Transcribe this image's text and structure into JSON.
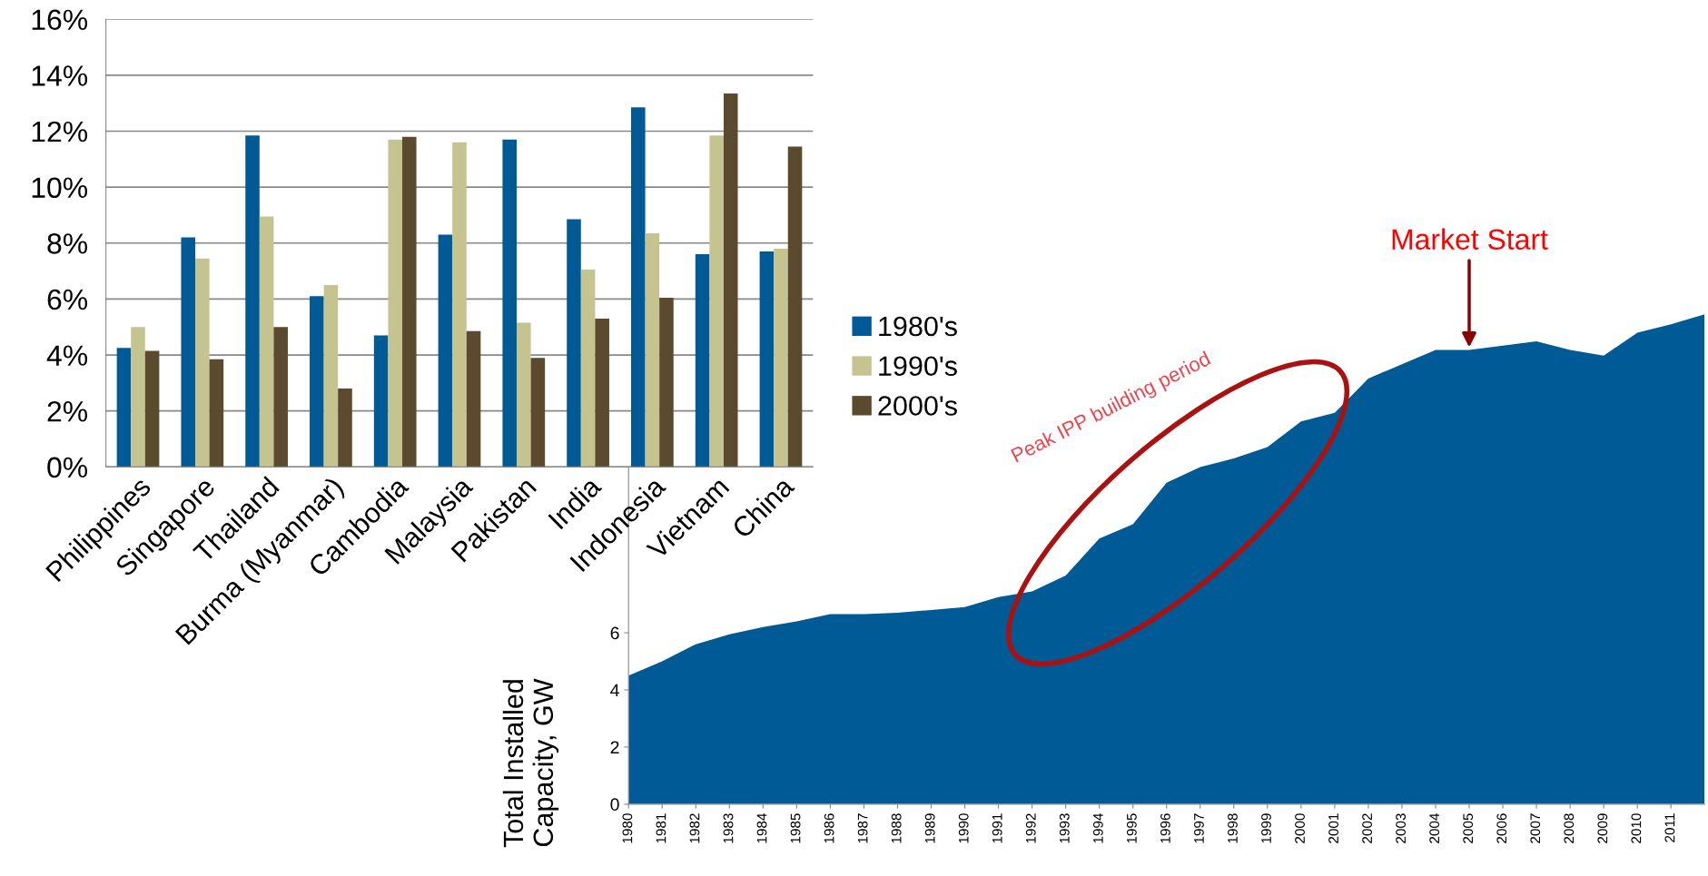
{
  "chart_data": [
    {
      "type": "bar",
      "categories": [
        "Philippines",
        "Singapore",
        "Thailand",
        "Burma (Myanmar)",
        "Cambodia",
        "Malaysia",
        "Pakistan",
        "India",
        "Indonesia",
        "Vietnam",
        "China"
      ],
      "series": [
        {
          "name": "1980's",
          "color": "#005a96",
          "values": [
            4.25,
            8.2,
            11.85,
            6.1,
            4.7,
            8.3,
            11.7,
            8.85,
            12.85,
            7.6,
            7.7
          ]
        },
        {
          "name": "1990's",
          "color": "#c5c491",
          "values": [
            5.0,
            7.45,
            8.95,
            6.5,
            11.7,
            11.6,
            5.15,
            7.05,
            8.35,
            11.85,
            7.8
          ]
        },
        {
          "name": "2000's",
          "color": "#5a4a2e",
          "values": [
            4.15,
            3.85,
            5.0,
            2.8,
            11.8,
            4.85,
            3.9,
            5.3,
            6.05,
            13.35,
            11.45
          ]
        }
      ],
      "ylim": [
        0,
        16
      ],
      "yticks": [
        {
          "value": 0,
          "label": "0%"
        },
        {
          "value": 2,
          "label": "2%"
        },
        {
          "value": 4,
          "label": "4%"
        },
        {
          "value": 6,
          "label": "6%"
        },
        {
          "value": 8,
          "label": "8%"
        },
        {
          "value": 10,
          "label": "10%"
        },
        {
          "value": 12,
          "label": "12%"
        },
        {
          "value": 14,
          "label": "14%"
        },
        {
          "value": 16,
          "label": "16%"
        }
      ],
      "grid": "y",
      "legend": "right"
    },
    {
      "type": "area",
      "ylabel": "Total Installed\nCapacity, GW",
      "x": [
        1980,
        1981,
        1982,
        1983,
        1984,
        1985,
        1986,
        1987,
        1988,
        1989,
        1990,
        1991,
        1992,
        1993,
        1994,
        1995,
        1996,
        1997,
        1998,
        1999,
        2000,
        2001,
        2002,
        2003,
        2004,
        2005,
        2006,
        2007,
        2008,
        2009,
        2010,
        2011,
        2012
      ],
      "series": [
        {
          "color": "#005a96",
          "values": [
            4.5,
            5.0,
            5.6,
            5.95,
            6.2,
            6.4,
            6.65,
            6.65,
            6.7,
            6.8,
            6.9,
            7.25,
            7.45,
            8.0,
            9.3,
            9.8,
            11.25,
            11.8,
            12.1,
            12.5,
            13.4,
            13.7,
            14.9,
            15.4,
            15.9,
            15.9,
            16.05,
            16.2,
            15.9,
            15.7,
            16.5,
            16.8,
            17.15
          ]
        }
      ],
      "xlim": [
        1980,
        2012
      ],
      "xticks": [
        1980,
        1981,
        1982,
        1983,
        1984,
        1985,
        1986,
        1987,
        1988,
        1989,
        1990,
        1991,
        1992,
        1993,
        1994,
        1995,
        1996,
        1997,
        1998,
        1999,
        2000,
        2001,
        2002,
        2003,
        2004,
        2005,
        2006,
        2007,
        2008,
        2009,
        2010,
        2011
      ],
      "ylim": [
        0,
        18
      ],
      "yticks": [
        0,
        2,
        4,
        6
      ],
      "grid": false,
      "annotations": [
        {
          "text": "Market Start",
          "x": 2005,
          "y": 15.9
        },
        "Peak IPP building period"
      ]
    }
  ]
}
